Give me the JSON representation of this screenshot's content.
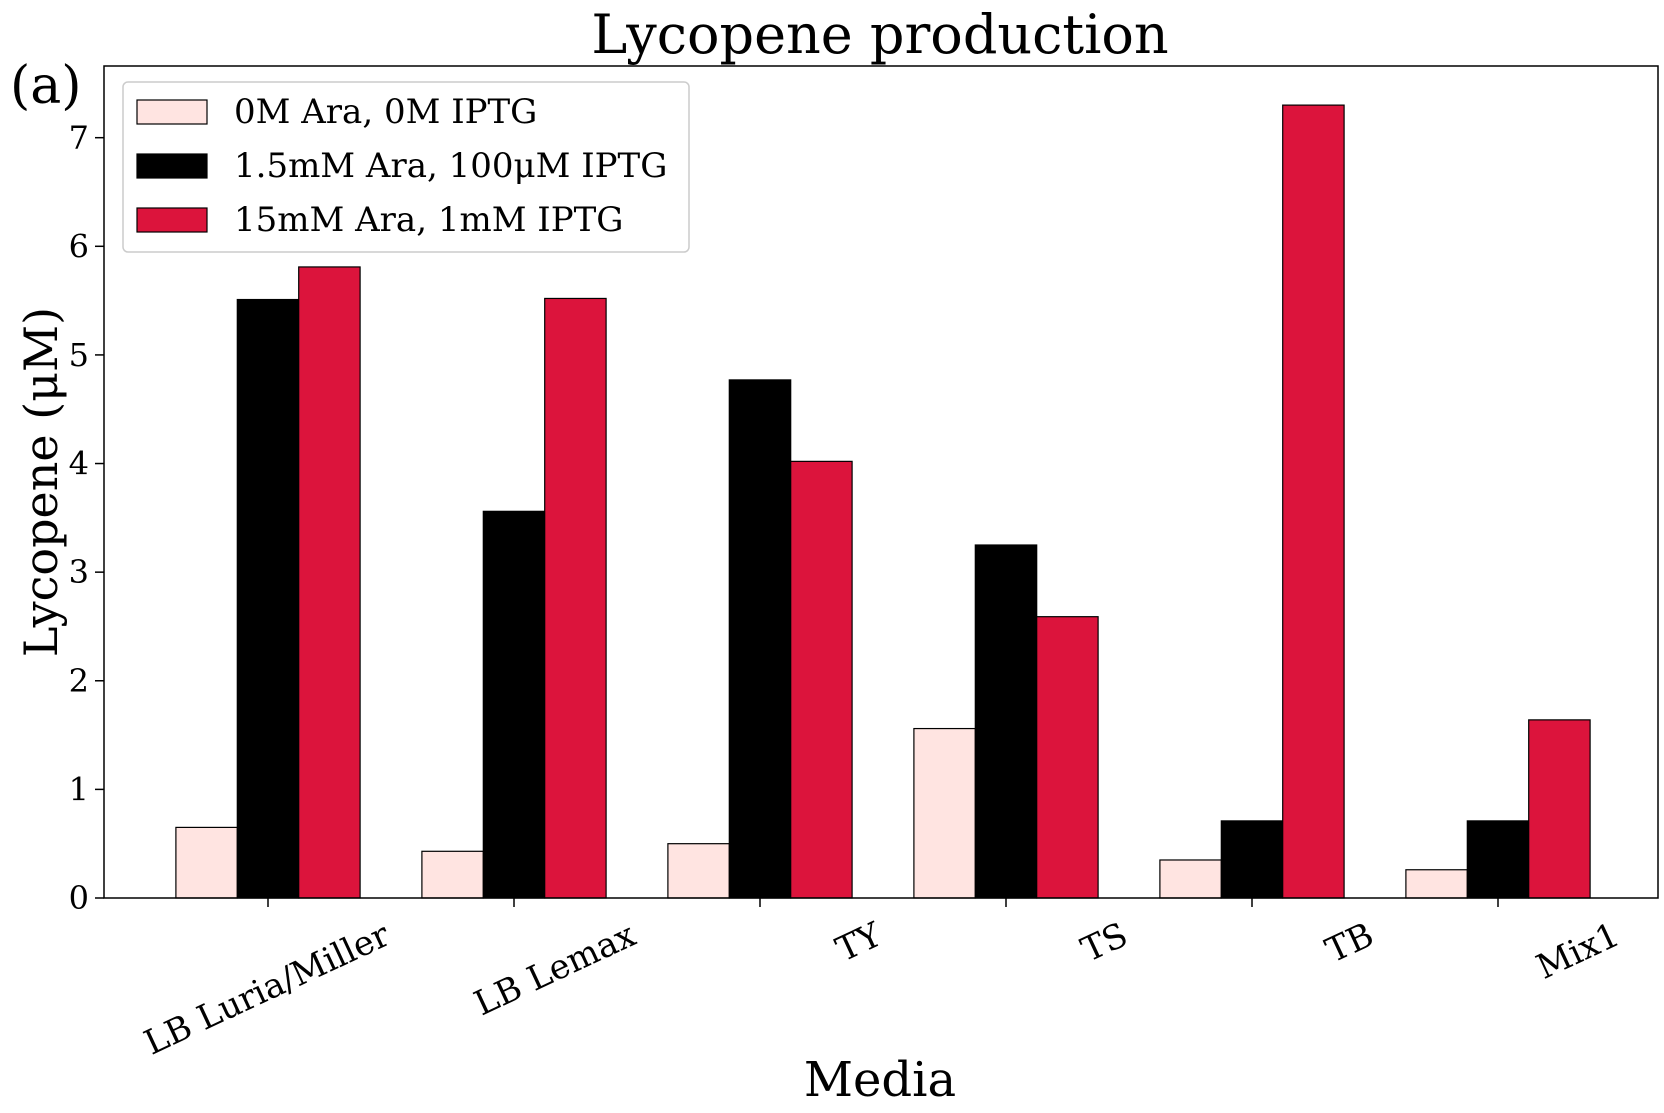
{
  "panel_label": "(a)",
  "chart_data": {
    "type": "bar",
    "title": "Lycopene production",
    "xlabel": "Media",
    "ylabel": "Lycopene (μM)",
    "categories": [
      "LB Luria/Miller",
      "LB Lemax",
      "TY",
      "TS",
      "TB",
      "Mix1"
    ],
    "series": [
      {
        "name": "0M Ara, 0M IPTG",
        "color": "#ffe4e1",
        "values": [
          0.65,
          0.43,
          0.5,
          1.56,
          0.35,
          0.26
        ]
      },
      {
        "name": "1.5mM Ara, 100μM IPTG",
        "color": "#000000",
        "values": [
          5.51,
          3.56,
          4.77,
          3.25,
          0.71,
          0.71
        ]
      },
      {
        "name": "15mM Ara, 1mM IPTG",
        "color": "#dc143c",
        "values": [
          5.81,
          5.52,
          4.02,
          2.59,
          7.3,
          1.64
        ]
      }
    ],
    "ylim": [
      0,
      7.66
    ],
    "yticks": [
      0,
      1,
      2,
      3,
      4,
      5,
      6,
      7
    ],
    "grid": false,
    "legend_position": "top-left",
    "tick_label_rotation": -25
  }
}
